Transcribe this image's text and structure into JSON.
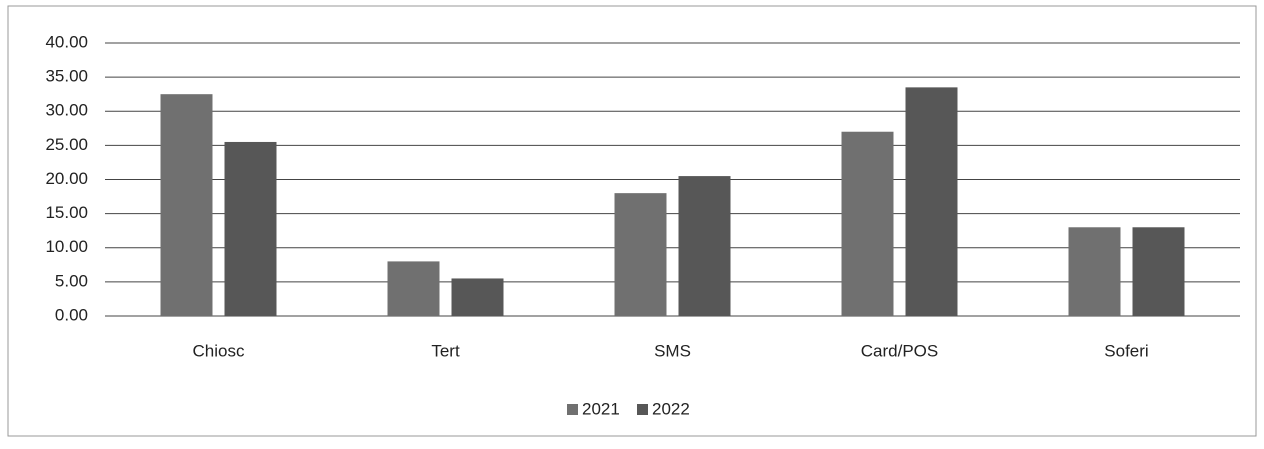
{
  "chart_data": {
    "type": "bar",
    "categories": [
      "Chiosc",
      "Tert",
      "SMS",
      "Card/POS",
      "Soferi"
    ],
    "series": [
      {
        "name": "2021",
        "color": "#707070",
        "values": [
          32.5,
          8,
          18,
          27,
          13
        ]
      },
      {
        "name": "2022",
        "color": "#575757",
        "values": [
          25.5,
          5.5,
          20.5,
          33.5,
          13
        ]
      }
    ],
    "ylim": [
      0,
      40
    ],
    "yticks": [
      {
        "value": 0,
        "label": "0.00"
      },
      {
        "value": 5,
        "label": "5.00"
      },
      {
        "value": 10,
        "label": "10.00"
      },
      {
        "value": 15,
        "label": "15.00"
      },
      {
        "value": 20,
        "label": "20.00"
      },
      {
        "value": 25,
        "label": "25.00"
      },
      {
        "value": 30,
        "label": "30.00"
      },
      {
        "value": 35,
        "label": "35.00"
      },
      {
        "value": 40,
        "label": "40.00"
      }
    ],
    "grid": true,
    "legend": "bottom"
  }
}
